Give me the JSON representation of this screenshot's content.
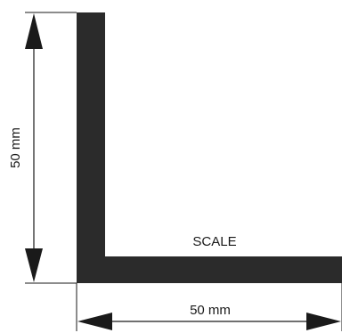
{
  "diagram": {
    "vertical_dimension": "50 mm",
    "horizontal_dimension": "50 mm",
    "scale_label": "SCALE"
  },
  "colors": {
    "profile_fill": "#2b2b2b",
    "line": "#1a1a1a",
    "background": "#ffffff"
  }
}
